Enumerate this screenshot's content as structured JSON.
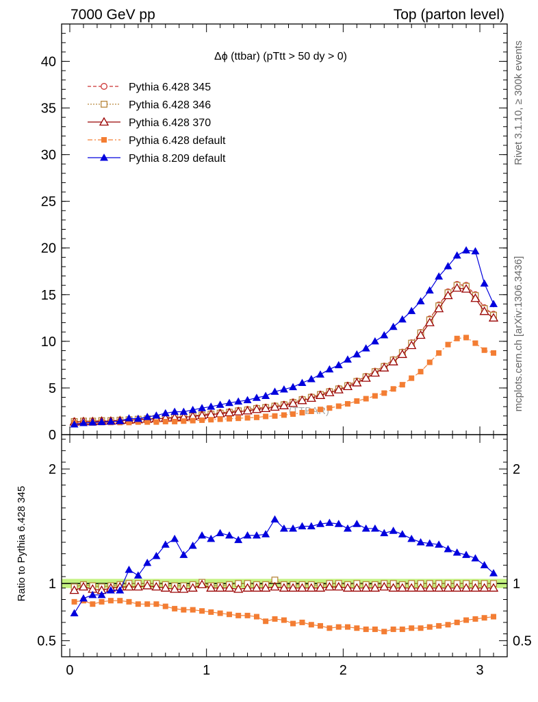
{
  "header": {
    "left": "7000 GeV pp",
    "right": "Top (parton level)"
  },
  "side_labels": {
    "rivet": "Rivet 3.1.10, ≥ 300k events",
    "mcplots": "mcplots.cern.ch [arXiv:1306.3436]"
  },
  "colors": {
    "pythia6_345": "#cc3333",
    "pythia6_346": "#b8863b",
    "pythia6_370": "#990000",
    "pythia6_default": "#f37d33",
    "pythia8_default": "#0000dd",
    "ref_band": "#b8f06a"
  },
  "chart_data": [
    {
      "type": "line",
      "title": "Δϕ (ttbar) (pTtt > 50 dy > 0)",
      "watermark": "(TTBAR)",
      "xlim": [
        -0.06,
        3.2
      ],
      "ylim": [
        0,
        44
      ],
      "yticks": [
        0,
        5,
        10,
        15,
        20,
        25,
        30,
        35,
        40
      ],
      "ytick_labels": [
        "0",
        "5",
        "10",
        "15",
        "20",
        "25",
        "30",
        "35",
        "40"
      ],
      "legend_position": "top-left",
      "x": [
        0.033,
        0.1,
        0.167,
        0.233,
        0.3,
        0.367,
        0.433,
        0.5,
        0.567,
        0.633,
        0.7,
        0.767,
        0.833,
        0.9,
        0.967,
        1.033,
        1.1,
        1.167,
        1.233,
        1.3,
        1.367,
        1.433,
        1.5,
        1.567,
        1.633,
        1.7,
        1.767,
        1.833,
        1.9,
        1.967,
        2.033,
        2.1,
        2.167,
        2.233,
        2.3,
        2.367,
        2.433,
        2.5,
        2.567,
        2.633,
        2.7,
        2.767,
        2.833,
        2.9,
        2.967,
        3.033,
        3.1
      ],
      "series": [
        {
          "name": "Pythia 6.428 345",
          "marker": "open-circle",
          "dash": "dashed",
          "color": "#cc3333",
          "values": [
            1.45,
            1.45,
            1.45,
            1.5,
            1.5,
            1.55,
            1.6,
            1.65,
            1.7,
            1.75,
            1.8,
            1.85,
            1.95,
            2.0,
            2.15,
            2.25,
            2.35,
            2.45,
            2.6,
            2.7,
            2.85,
            2.95,
            3.1,
            3.25,
            3.5,
            3.8,
            4.05,
            4.35,
            4.65,
            4.95,
            5.3,
            5.75,
            6.25,
            6.8,
            7.35,
            8.05,
            8.85,
            9.85,
            10.95,
            12.4,
            13.9,
            15.3,
            16.1,
            16.0,
            15.0,
            13.6,
            12.9
          ],
          "errors": [
            0.1,
            0.1,
            0.1,
            0.1,
            0.1,
            0.1,
            0.1,
            0.1,
            0.1,
            0.1,
            0.1,
            0.1,
            0.1,
            0.1,
            0.1,
            0.1,
            0.1,
            0.1,
            0.1,
            0.1,
            0.1,
            0.1,
            0.1,
            0.1,
            0.1,
            0.1,
            0.1,
            0.1,
            0.1,
            0.1,
            0.15,
            0.15,
            0.15,
            0.15,
            0.15,
            0.15,
            0.15,
            0.2,
            0.2,
            0.2,
            0.2,
            0.25,
            0.25,
            0.25,
            0.25,
            0.25,
            0.25
          ]
        },
        {
          "name": "Pythia 6.428 346",
          "marker": "open-square",
          "dash": "dotted",
          "color": "#b8863b",
          "values": [
            1.4,
            1.45,
            1.45,
            1.5,
            1.5,
            1.55,
            1.6,
            1.65,
            1.7,
            1.75,
            1.8,
            1.85,
            1.9,
            2.0,
            2.1,
            2.2,
            2.3,
            2.4,
            2.55,
            2.65,
            2.8,
            2.9,
            3.05,
            3.2,
            3.45,
            3.75,
            4.0,
            4.3,
            4.6,
            4.9,
            5.25,
            5.7,
            6.2,
            6.75,
            7.3,
            8.0,
            8.8,
            9.8,
            10.9,
            12.3,
            13.8,
            15.2,
            16.0,
            15.9,
            14.9,
            13.5,
            12.8
          ],
          "errors": [
            0.1,
            0.1,
            0.1,
            0.1,
            0.1,
            0.1,
            0.1,
            0.1,
            0.1,
            0.1,
            0.1,
            0.1,
            0.1,
            0.1,
            0.1,
            0.1,
            0.1,
            0.1,
            0.1,
            0.1,
            0.1,
            0.1,
            0.1,
            0.1,
            0.1,
            0.1,
            0.1,
            0.1,
            0.1,
            0.1,
            0.15,
            0.15,
            0.15,
            0.15,
            0.15,
            0.15,
            0.15,
            0.2,
            0.2,
            0.2,
            0.2,
            0.25,
            0.25,
            0.25,
            0.25,
            0.25,
            0.25
          ]
        },
        {
          "name": "Pythia 6.428 370",
          "marker": "open-triangle",
          "dash": "solid",
          "color": "#990000",
          "values": [
            1.35,
            1.4,
            1.4,
            1.45,
            1.45,
            1.5,
            1.55,
            1.6,
            1.65,
            1.7,
            1.75,
            1.8,
            1.85,
            1.95,
            2.05,
            2.15,
            2.25,
            2.35,
            2.45,
            2.55,
            2.7,
            2.8,
            2.95,
            3.1,
            3.35,
            3.65,
            3.9,
            4.2,
            4.5,
            4.8,
            5.15,
            5.55,
            6.05,
            6.6,
            7.15,
            7.8,
            8.6,
            9.55,
            10.65,
            12.0,
            13.5,
            14.9,
            15.7,
            15.6,
            14.6,
            13.2,
            12.5
          ],
          "errors": [
            0.1,
            0.1,
            0.1,
            0.1,
            0.1,
            0.1,
            0.1,
            0.1,
            0.1,
            0.1,
            0.1,
            0.1,
            0.1,
            0.1,
            0.1,
            0.1,
            0.1,
            0.1,
            0.1,
            0.1,
            0.1,
            0.1,
            0.1,
            0.1,
            0.1,
            0.1,
            0.1,
            0.1,
            0.1,
            0.1,
            0.15,
            0.15,
            0.15,
            0.15,
            0.15,
            0.15,
            0.15,
            0.2,
            0.2,
            0.2,
            0.2,
            0.25,
            0.25,
            0.25,
            0.25,
            0.25,
            0.25
          ]
        },
        {
          "name": "Pythia 6.428 default",
          "marker": "filled-square",
          "dash": "dashdot",
          "color": "#f37d33",
          "values": [
            1.25,
            1.25,
            1.25,
            1.3,
            1.3,
            1.3,
            1.3,
            1.35,
            1.35,
            1.35,
            1.4,
            1.4,
            1.45,
            1.5,
            1.55,
            1.6,
            1.65,
            1.7,
            1.75,
            1.8,
            1.85,
            1.95,
            2.0,
            2.1,
            2.2,
            2.35,
            2.5,
            2.7,
            2.85,
            3.05,
            3.3,
            3.6,
            3.85,
            4.15,
            4.45,
            4.9,
            5.35,
            6.05,
            6.75,
            7.75,
            8.75,
            9.65,
            10.3,
            10.4,
            9.8,
            9.05,
            8.75
          ],
          "errors": [
            0.05,
            0.05,
            0.05,
            0.05,
            0.05,
            0.05,
            0.05,
            0.05,
            0.05,
            0.05,
            0.05,
            0.05,
            0.05,
            0.05,
            0.05,
            0.05,
            0.05,
            0.05,
            0.05,
            0.05,
            0.05,
            0.05,
            0.05,
            0.05,
            0.05,
            0.05,
            0.05,
            0.05,
            0.05,
            0.05,
            0.1,
            0.1,
            0.1,
            0.1,
            0.1,
            0.1,
            0.1,
            0.1,
            0.1,
            0.1,
            0.15,
            0.15,
            0.15,
            0.15,
            0.15,
            0.15,
            0.15
          ]
        },
        {
          "name": "Pythia 8.209 default",
          "marker": "filled-triangle",
          "dash": "solid",
          "color": "#0000dd",
          "values": [
            1.1,
            1.25,
            1.3,
            1.35,
            1.4,
            1.45,
            1.75,
            1.7,
            1.9,
            2.05,
            2.3,
            2.45,
            2.45,
            2.65,
            2.85,
            3.0,
            3.2,
            3.4,
            3.55,
            3.7,
            3.95,
            4.15,
            4.6,
            4.85,
            5.1,
            5.55,
            5.95,
            6.45,
            7.0,
            7.45,
            8.05,
            8.6,
            9.25,
            10.0,
            10.65,
            11.55,
            12.35,
            13.25,
            14.3,
            15.45,
            16.95,
            18.05,
            19.2,
            19.75,
            19.65,
            16.2,
            14.0
          ],
          "errors": [
            0.1,
            0.1,
            0.1,
            0.1,
            0.1,
            0.1,
            0.1,
            0.1,
            0.1,
            0.1,
            0.1,
            0.1,
            0.1,
            0.15,
            0.15,
            0.15,
            0.15,
            0.15,
            0.15,
            0.15,
            0.15,
            0.15,
            0.15,
            0.15,
            0.15,
            0.15,
            0.15,
            0.15,
            0.2,
            0.2,
            0.2,
            0.2,
            0.2,
            0.25,
            0.25,
            0.25,
            0.25,
            0.3,
            0.3,
            0.3,
            0.3,
            0.35,
            0.35,
            0.35,
            0.35,
            0.35,
            0.35
          ]
        }
      ]
    },
    {
      "type": "line",
      "ylabel": "Ratio to Pythia 6.428 345",
      "xlim": [
        -0.06,
        3.2
      ],
      "ylim": [
        0.36,
        2.3
      ],
      "xticks": [
        0,
        1,
        2,
        3
      ],
      "xtick_labels": [
        "0",
        "1",
        "2",
        "3"
      ],
      "yticks": [
        0.5,
        1,
        2
      ],
      "ytick_labels": [
        "0.5",
        "1",
        "2"
      ],
      "reference_band": [
        0.96,
        1.04
      ],
      "x": [
        0.033,
        0.1,
        0.167,
        0.233,
        0.3,
        0.367,
        0.433,
        0.5,
        0.567,
        0.633,
        0.7,
        0.767,
        0.833,
        0.9,
        0.967,
        1.033,
        1.1,
        1.167,
        1.233,
        1.3,
        1.367,
        1.433,
        1.5,
        1.567,
        1.633,
        1.7,
        1.767,
        1.833,
        1.9,
        1.967,
        2.033,
        2.1,
        2.167,
        2.233,
        2.3,
        2.367,
        2.433,
        2.5,
        2.567,
        2.633,
        2.7,
        2.767,
        2.833,
        2.9,
        2.967,
        3.033,
        3.1
      ],
      "series": [
        {
          "name": "Pythia 6.428 346",
          "marker": "open-square",
          "color": "#b8863b",
          "values": [
            0.97,
            0.99,
            0.98,
            0.97,
            0.98,
            0.99,
            1.0,
            1.0,
            1.0,
            1.0,
            0.99,
            0.98,
            0.98,
            0.99,
            1.01,
            0.98,
            0.98,
            0.99,
            1.0,
            1.0,
            0.99,
            0.99,
            1.03,
            0.99,
            0.99,
            0.99,
            0.99,
            0.98,
            1.0,
            1.0,
            0.99,
            1.0,
            0.99,
            0.99,
            1.0,
            1.0,
            0.99,
            1.0,
            1.0,
            1.0,
            1.0,
            1.0,
            1.0,
            1.0,
            1.0,
            1.0,
            1.0
          ]
        },
        {
          "name": "Pythia 6.428 370",
          "marker": "open-triangle",
          "color": "#990000",
          "values": [
            0.94,
            0.97,
            0.95,
            0.94,
            0.96,
            0.97,
            0.97,
            0.97,
            0.98,
            0.97,
            0.96,
            0.95,
            0.95,
            0.96,
            0.99,
            0.96,
            0.96,
            0.96,
            0.95,
            0.96,
            0.96,
            0.96,
            0.97,
            0.96,
            0.96,
            0.96,
            0.96,
            0.96,
            0.97,
            0.97,
            0.96,
            0.96,
            0.96,
            0.96,
            0.97,
            0.96,
            0.96,
            0.96,
            0.96,
            0.96,
            0.96,
            0.96,
            0.96,
            0.96,
            0.96,
            0.96,
            0.96
          ]
        },
        {
          "name": "Pythia 6.428 default",
          "marker": "filled-square",
          "color": "#f37d33",
          "values": [
            0.84,
            0.85,
            0.82,
            0.84,
            0.85,
            0.85,
            0.84,
            0.82,
            0.82,
            0.82,
            0.8,
            0.78,
            0.77,
            0.77,
            0.76,
            0.75,
            0.74,
            0.73,
            0.72,
            0.72,
            0.71,
            0.67,
            0.69,
            0.68,
            0.65,
            0.66,
            0.64,
            0.63,
            0.61,
            0.62,
            0.62,
            0.61,
            0.6,
            0.6,
            0.58,
            0.6,
            0.6,
            0.61,
            0.61,
            0.62,
            0.63,
            0.64,
            0.66,
            0.68,
            0.69,
            0.7,
            0.71
          ]
        },
        {
          "name": "Pythia 8.209 default",
          "marker": "filled-triangle",
          "color": "#0000dd",
          "values": [
            0.74,
            0.87,
            0.9,
            0.9,
            0.94,
            0.94,
            1.12,
            1.07,
            1.18,
            1.24,
            1.34,
            1.39,
            1.25,
            1.33,
            1.42,
            1.39,
            1.44,
            1.42,
            1.38,
            1.42,
            1.42,
            1.43,
            1.56,
            1.48,
            1.48,
            1.5,
            1.5,
            1.52,
            1.53,
            1.52,
            1.48,
            1.52,
            1.48,
            1.48,
            1.44,
            1.46,
            1.43,
            1.39,
            1.36,
            1.35,
            1.34,
            1.3,
            1.27,
            1.25,
            1.22,
            1.16,
            1.09
          ]
        }
      ]
    }
  ]
}
